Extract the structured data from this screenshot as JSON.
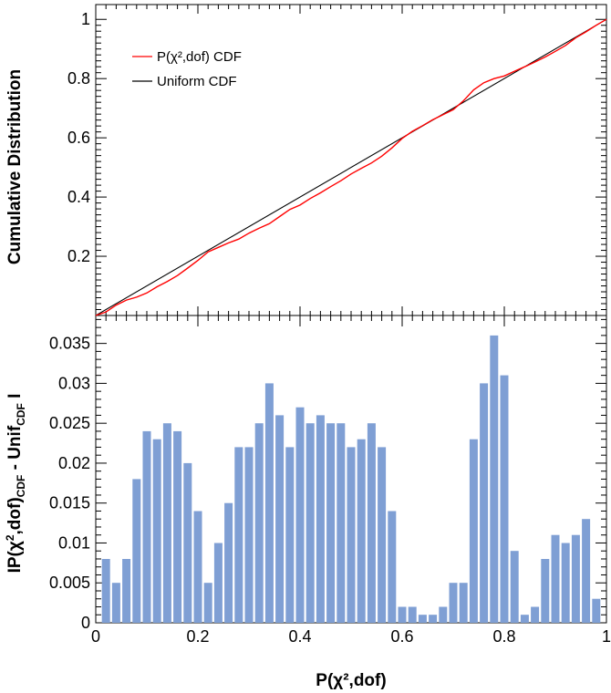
{
  "chart_data": [
    {
      "type": "line",
      "ylabel": "Cumulative Distribution",
      "xlim": [
        0,
        1
      ],
      "ylim": [
        0,
        1.05
      ],
      "x_ticks": [
        "0",
        "0.2",
        "0.4",
        "0.6",
        "0.8",
        "1"
      ],
      "y_ticks": [
        "0.2",
        "0.4",
        "0.6",
        "0.8",
        "1"
      ],
      "legend_position": "top-left",
      "series": [
        {
          "name": "P(χ²,dof) CDF",
          "color": "#ff0000",
          "x": [
            0,
            0.02,
            0.04,
            0.06,
            0.08,
            0.1,
            0.12,
            0.14,
            0.16,
            0.18,
            0.2,
            0.22,
            0.24,
            0.26,
            0.28,
            0.3,
            0.32,
            0.34,
            0.36,
            0.38,
            0.4,
            0.42,
            0.44,
            0.46,
            0.48,
            0.5,
            0.52,
            0.54,
            0.56,
            0.58,
            0.6,
            0.62,
            0.64,
            0.66,
            0.68,
            0.7,
            0.72,
            0.74,
            0.76,
            0.78,
            0.8,
            0.82,
            0.84,
            0.86,
            0.88,
            0.9,
            0.92,
            0.94,
            0.96,
            0.98,
            1.0
          ],
          "y": [
            0,
            0.012,
            0.035,
            0.052,
            0.062,
            0.076,
            0.097,
            0.115,
            0.135,
            0.16,
            0.186,
            0.215,
            0.23,
            0.245,
            0.258,
            0.278,
            0.295,
            0.31,
            0.334,
            0.358,
            0.373,
            0.395,
            0.414,
            0.435,
            0.455,
            0.478,
            0.497,
            0.515,
            0.538,
            0.566,
            0.598,
            0.622,
            0.641,
            0.661,
            0.678,
            0.695,
            0.725,
            0.762,
            0.786,
            0.8,
            0.809,
            0.825,
            0.84,
            0.856,
            0.873,
            0.892,
            0.912,
            0.938,
            0.958,
            0.98,
            1.0
          ]
        },
        {
          "name": "Uniform CDF",
          "color": "#000000",
          "x": [
            0,
            1
          ],
          "y": [
            0,
            1
          ]
        }
      ]
    },
    {
      "type": "bar",
      "xlabel": "P(χ²,dof)",
      "ylabel_parts": [
        "IP(χ",
        "2",
        ",dof)",
        "CDF",
        " - Unif",
        "CDF",
        " I"
      ],
      "xlim": [
        0,
        1
      ],
      "ylim": [
        0,
        0.0385
      ],
      "x_ticks": [
        "0",
        "0.2",
        "0.4",
        "0.6",
        "0.8",
        "1"
      ],
      "y_ticks": [
        "0",
        "0.005",
        "0.01",
        "0.015",
        "0.02",
        "0.025",
        "0.03",
        "0.035"
      ],
      "series": [
        {
          "name": "",
          "color": "#7f9fd4",
          "x": [
            0.02,
            0.04,
            0.06,
            0.08,
            0.1,
            0.12,
            0.14,
            0.16,
            0.18,
            0.2,
            0.22,
            0.24,
            0.26,
            0.28,
            0.3,
            0.32,
            0.34,
            0.36,
            0.38,
            0.4,
            0.42,
            0.44,
            0.46,
            0.48,
            0.5,
            0.52,
            0.54,
            0.56,
            0.58,
            0.6,
            0.62,
            0.64,
            0.66,
            0.68,
            0.7,
            0.72,
            0.74,
            0.76,
            0.78,
            0.8,
            0.82,
            0.84,
            0.86,
            0.88,
            0.9,
            0.92,
            0.94,
            0.96,
            0.98
          ],
          "values": [
            0.008,
            0.005,
            0.008,
            0.018,
            0.024,
            0.023,
            0.025,
            0.024,
            0.02,
            0.014,
            0.005,
            0.01,
            0.015,
            0.022,
            0.022,
            0.025,
            0.03,
            0.026,
            0.022,
            0.027,
            0.025,
            0.026,
            0.025,
            0.025,
            0.022,
            0.023,
            0.025,
            0.022,
            0.014,
            0.002,
            0.002,
            0.001,
            0.001,
            0.002,
            0.005,
            0.005,
            0.023,
            0.03,
            0.036,
            0.031,
            0.009,
            0.001,
            0.002,
            0.008,
            0.011,
            0.01,
            0.011,
            0.013,
            0.003
          ]
        }
      ]
    }
  ]
}
